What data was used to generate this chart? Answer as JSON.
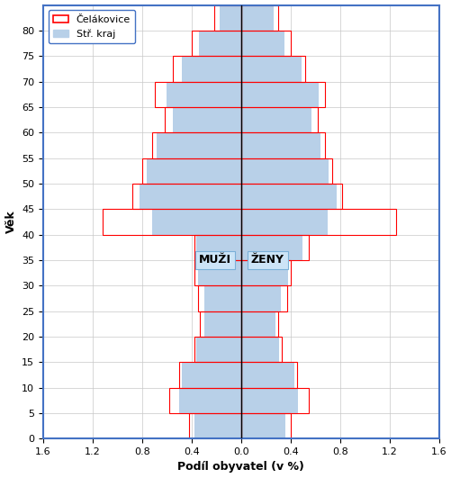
{
  "age_groups": [
    0,
    5,
    10,
    15,
    20,
    25,
    30,
    35,
    40,
    45,
    50,
    55,
    60,
    65,
    70,
    75,
    80
  ],
  "celakovice_male": [
    0.42,
    0.58,
    0.5,
    0.38,
    0.33,
    0.35,
    0.38,
    0.38,
    1.12,
    0.88,
    0.8,
    0.72,
    0.62,
    0.7,
    0.55,
    0.4,
    0.22
  ],
  "celakovice_female": [
    0.4,
    0.55,
    0.45,
    0.33,
    0.3,
    0.37,
    0.4,
    0.55,
    1.25,
    0.82,
    0.74,
    0.68,
    0.62,
    0.68,
    0.52,
    0.4,
    0.3
  ],
  "kraj_male": [
    0.38,
    0.5,
    0.48,
    0.36,
    0.3,
    0.3,
    0.35,
    0.36,
    0.72,
    0.82,
    0.76,
    0.68,
    0.55,
    0.6,
    0.48,
    0.34,
    0.17
  ],
  "kraj_female": [
    0.36,
    0.46,
    0.43,
    0.31,
    0.28,
    0.32,
    0.38,
    0.5,
    0.7,
    0.77,
    0.71,
    0.64,
    0.57,
    0.63,
    0.49,
    0.35,
    0.26
  ],
  "xlabel": "Podíl obyvatel (v %)",
  "ylabel": "Věk",
  "xlim": [
    -1.6,
    1.6
  ],
  "xticks": [
    -1.6,
    -1.2,
    -0.8,
    -0.4,
    0.0,
    0.4,
    0.8,
    1.2,
    1.6
  ],
  "xtick_labels": [
    "1.6",
    "1.2",
    "0.8",
    "0.4",
    "0.0",
    "0.4",
    "0.8",
    "1.2",
    "1.6"
  ],
  "bar_height": 5.0,
  "celakovice_color": "#FF0000",
  "kraj_fill_color": "#b8d0e8",
  "legend_celakovice": "Čelákovice",
  "legend_kraj": "Stř. kraj",
  "label_muzi": "MUŽI",
  "label_zeny": "ŽENY",
  "bg_color": "#ffffff",
  "grid_color": "#c8c8c8",
  "spine_color": "#4472c4"
}
